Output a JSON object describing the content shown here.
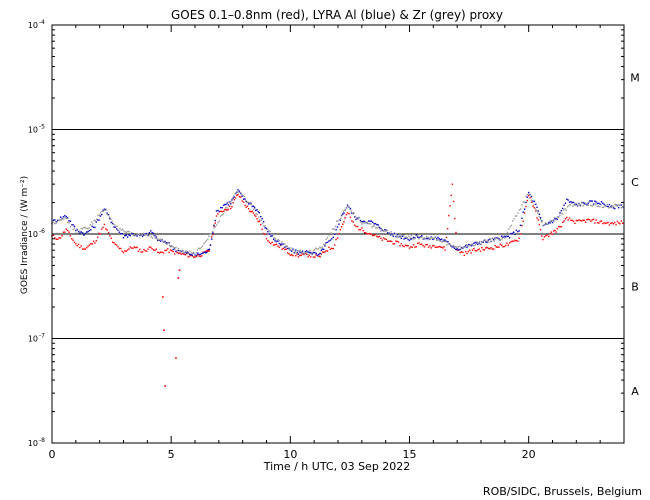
{
  "chart_data": {
    "type": "scatter",
    "title": "GOES 0.1–0.8nm (red), LYRA Al (blue) & Zr (grey) proxy",
    "xlabel": "Time / h UTC, 03 Sep 2022",
    "ylabel": "GOES Irradiance / (W m⁻²)",
    "xlim": [
      0,
      24
    ],
    "ylim": [
      1e-08,
      0.0001
    ],
    "yscale": "log",
    "x_ticks": [
      0,
      5,
      10,
      15,
      20
    ],
    "x_tick_labels": [
      "0",
      "5",
      "10",
      "15",
      "20"
    ],
    "y_ticks": [
      1e-08,
      1e-07,
      1e-06,
      1e-05,
      0.0001
    ],
    "y_tick_labels": [
      {
        "base": "10",
        "exp": "-8"
      },
      {
        "base": "10",
        "exp": "-7"
      },
      {
        "base": "10",
        "exp": "-6"
      },
      {
        "base": "10",
        "exp": "-5"
      },
      {
        "base": "10",
        "exp": "-4"
      }
    ],
    "flare_class_lines": [
      1e-07,
      1e-06,
      1e-05
    ],
    "flare_classes": [
      {
        "label": "A",
        "at": 3.16e-08
      },
      {
        "label": "B",
        "at": 3.16e-07
      },
      {
        "label": "C",
        "at": 3.16e-06
      },
      {
        "label": "M",
        "at": 3.16e-05
      }
    ],
    "series": [
      {
        "name": "GOES 0.1-0.8nm",
        "color": "#ff0000",
        "x": [
          0.0,
          0.3,
          0.6,
          1.0,
          1.4,
          1.8,
          2.2,
          2.6,
          3.0,
          3.4,
          3.8,
          4.2,
          4.5,
          4.8,
          5.2,
          5.6,
          6.0,
          6.4,
          6.6,
          6.9,
          7.2,
          7.5,
          7.8,
          8.1,
          8.4,
          8.7,
          9.0,
          9.3,
          9.6,
          10.0,
          10.4,
          10.8,
          11.2,
          11.5,
          11.8,
          12.1,
          12.4,
          12.7,
          13.0,
          13.4,
          13.8,
          14.2,
          14.6,
          15.0,
          15.4,
          15.8,
          16.2,
          16.5,
          16.8,
          17.0,
          17.3,
          17.7,
          18.2,
          18.7,
          19.2,
          19.6,
          20.0,
          20.3,
          20.6,
          20.9,
          21.2,
          21.6,
          22.0,
          22.5,
          23.0,
          23.5,
          24.0
        ],
        "y": [
          9.5e-07,
          9e-07,
          1.1e-06,
          8e-07,
          7.2e-07,
          8.5e-07,
          1.2e-06,
          8e-07,
          6.8e-07,
          7.5e-07,
          6.8e-07,
          7.5e-07,
          6.5e-07,
          7e-07,
          6.6e-07,
          6.3e-07,
          6.1e-07,
          6.5e-07,
          7e-07,
          1.5e-06,
          1.7e-06,
          1.8e-06,
          2.4e-06,
          1.9e-06,
          1.6e-06,
          1.3e-06,
          9e-07,
          8e-07,
          7.5e-07,
          6.5e-07,
          6.2e-07,
          6.3e-07,
          6e-07,
          7e-07,
          7.5e-07,
          1.1e-06,
          1.6e-06,
          1.2e-06,
          1.1e-06,
          1e-06,
          9e-07,
          8.5e-07,
          8e-07,
          7.5e-07,
          8e-07,
          7.6e-07,
          7.8e-07,
          7.2e-07,
          3e-06,
          7e-07,
          6.5e-07,
          7e-07,
          7.2e-07,
          7.6e-07,
          8e-07,
          9e-07,
          2.4e-06,
          1.6e-06,
          9e-07,
          1e-06,
          1.1e-06,
          1.4e-06,
          1.3e-06,
          1.35e-06,
          1.3e-06,
          1.25e-06,
          1.3e-06
        ]
      },
      {
        "name": "LYRA Al proxy",
        "color": "#0000cc",
        "x": [
          0.0,
          0.3,
          0.6,
          1.0,
          1.4,
          1.8,
          2.2,
          2.6,
          3.0,
          3.4,
          3.8,
          4.2,
          4.5,
          4.8,
          5.2,
          5.6,
          6.0,
          6.4,
          6.6,
          6.9,
          7.2,
          7.5,
          7.8,
          8.1,
          8.4,
          8.7,
          9.0,
          9.3,
          9.6,
          10.0,
          10.4,
          10.8,
          11.2,
          11.5,
          11.8,
          12.1,
          12.4,
          12.7,
          13.0,
          13.4,
          13.8,
          14.2,
          14.6,
          15.0,
          15.4,
          15.8,
          16.2,
          16.5,
          17.0,
          17.3,
          17.7,
          18.2,
          18.7,
          19.2,
          19.6,
          20.0,
          20.3,
          20.6,
          20.9,
          21.2,
          21.6,
          22.0,
          22.5,
          23.0,
          23.5,
          24.0
        ],
        "y": [
          1.3e-06,
          1.4e-06,
          1.5e-06,
          1.1e-06,
          1e-06,
          1.2e-06,
          1.75e-06,
          1.2e-06,
          9.5e-07,
          1e-06,
          9.5e-07,
          1.05e-06,
          8.5e-07,
          8.5e-07,
          7e-07,
          6.6e-07,
          6.3e-07,
          6.6e-07,
          7e-07,
          1.6e-06,
          1.9e-06,
          2e-06,
          2.6e-06,
          2.1e-06,
          1.9e-06,
          1.6e-06,
          1.1e-06,
          9e-07,
          8e-07,
          7e-07,
          6.6e-07,
          6.8e-07,
          6.2e-07,
          8e-07,
          9e-07,
          1.4e-06,
          1.9e-06,
          1.45e-06,
          1.35e-06,
          1.3e-06,
          1.15e-06,
          1e-06,
          9.5e-07,
          9e-07,
          9.5e-07,
          9e-07,
          9.2e-07,
          8.5e-07,
          7.2e-07,
          7.5e-07,
          8e-07,
          8.5e-07,
          9e-07,
          9.5e-07,
          1.1e-06,
          2.5e-06,
          1.9e-06,
          1.2e-06,
          1.3e-06,
          1.4e-06,
          2.1e-06,
          1.9e-06,
          2e-06,
          2e-06,
          1.8e-06,
          1.9e-06
        ]
      },
      {
        "name": "LYRA Zr proxy",
        "color": "#999999",
        "x": [
          0.0,
          0.5,
          1.0,
          1.5,
          2.2,
          2.8,
          3.4,
          4.0,
          4.6,
          5.2,
          6.0,
          6.8,
          7.4,
          7.8,
          8.4,
          9.0,
          9.6,
          10.2,
          10.8,
          11.4,
          12.0,
          12.4,
          13.0,
          13.8,
          14.6,
          15.4,
          16.2,
          17.0,
          18.0,
          19.0,
          20.0,
          20.6,
          21.2,
          21.8,
          22.5,
          23.2,
          24.0
        ],
        "y": [
          1.25e-06,
          1.45e-06,
          1.05e-06,
          1.15e-06,
          1.7e-06,
          1.1e-06,
          9.8e-07,
          1e-06,
          8.6e-07,
          7.2e-07,
          6.4e-07,
          1.1e-06,
          1.95e-06,
          2.55e-06,
          1.85e-06,
          1.1e-06,
          8.2e-07,
          6.8e-07,
          6.6e-07,
          7.8e-07,
          1.35e-06,
          1.85e-06,
          1.3e-06,
          1.1e-06,
          9.4e-07,
          9.3e-07,
          9e-07,
          7.3e-07,
          8.3e-07,
          9.3e-07,
          2.45e-06,
          1.2e-06,
          1.45e-06,
          1.9e-06,
          1.95e-06,
          1.85e-06,
          1.85e-06
        ]
      }
    ],
    "isolated_points": {
      "color": "#ff0000",
      "x": [
        4.65,
        4.7,
        4.75,
        5.2,
        5.3,
        5.35
      ],
      "y": [
        2.5e-07,
        1.2e-07,
        3.5e-08,
        6.5e-08,
        3.8e-07,
        4.5e-07
      ]
    },
    "credit": "ROB/SIDC, Brussels, Belgium"
  }
}
